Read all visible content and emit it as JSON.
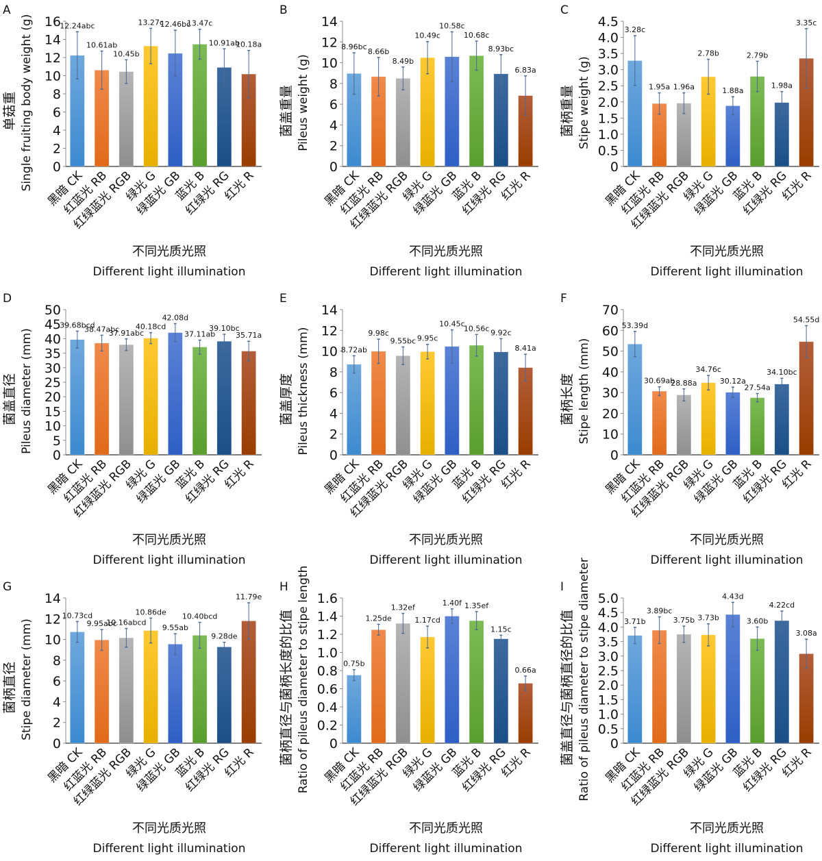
{
  "figure": {
    "xlabel_cn": "不同光质光照",
    "xlabel_en": "Different light illumination",
    "categories": [
      "黑暗 CK",
      "红蓝光 RB",
      "红绿蓝光 RGB",
      "绿光 G",
      "绿蓝光 GB",
      "蓝光 B",
      "红绿光 RG",
      "红光 R"
    ],
    "bar_colors": [
      {
        "top": "#6fa8dc",
        "bottom": "#3d8ad0"
      },
      {
        "top": "#f08a4b",
        "bottom": "#e06a1a"
      },
      {
        "top": "#b5b5b5",
        "bottom": "#8f8f8f"
      },
      {
        "top": "#ffc933",
        "bottom": "#e6b000"
      },
      {
        "top": "#5b82d6",
        "bottom": "#2e5fc4"
      },
      {
        "top": "#7dbb55",
        "bottom": "#5a9e2f"
      },
      {
        "top": "#3d6a9e",
        "bottom": "#1a4f86"
      },
      {
        "top": "#b35e3a",
        "bottom": "#993d00"
      }
    ],
    "errorbar_color": "#4a6a94"
  },
  "chart_data": [
    {
      "panel": "A",
      "type": "bar",
      "ylabel_cn": "单菇重",
      "ylabel_en": "Single fruiting body weight (g)",
      "xlabel": "不同光质光照 Different light illumination",
      "categories": [
        "黑暗 CK",
        "红蓝光 RB",
        "红绿蓝光 RGB",
        "绿光 G",
        "绿蓝光 GB",
        "蓝光 B",
        "红绿光 RG",
        "红光 R"
      ],
      "values": [
        12.24,
        10.61,
        10.45,
        13.27,
        12.46,
        13.47,
        10.91,
        10.18
      ],
      "errors": [
        2.6,
        2.1,
        1.3,
        1.95,
        2.55,
        1.65,
        2.05,
        2.6
      ],
      "labels": [
        "12.24abc",
        "10.61ab",
        "10.45b",
        "13.27c",
        "12.46bc",
        "13.47c",
        "10.91ab",
        "10.18a"
      ],
      "ylim": [
        0,
        16
      ],
      "yticks": [
        "0",
        "2",
        "4",
        "6",
        "8",
        "10",
        "12",
        "14",
        "16"
      ],
      "ytick_values": [
        0,
        2,
        4,
        6,
        8,
        10,
        12,
        14,
        16
      ],
      "grid": false
    },
    {
      "panel": "B",
      "type": "bar",
      "ylabel_cn": "菌盖重量",
      "ylabel_en": "Pileus weight (g)",
      "xlabel": "不同光质光照 Different light illumination",
      "categories": [
        "黑暗 CK",
        "红蓝光 RB",
        "红绿蓝光 RGB",
        "绿光 G",
        "绿蓝光 GB",
        "蓝光 B",
        "红绿光 RG",
        "红光 R"
      ],
      "values": [
        8.96,
        8.66,
        8.49,
        10.49,
        10.58,
        10.68,
        8.93,
        6.83
      ],
      "errors": [
        2.0,
        1.85,
        1.1,
        1.55,
        2.4,
        1.4,
        1.85,
        1.9
      ],
      "labels": [
        "8.96bc",
        "8.66b",
        "8.49b",
        "10.49c",
        "10.58c",
        "10.68c",
        "8.93bc",
        "6.83a"
      ],
      "ylim": [
        0,
        14
      ],
      "yticks": [
        "0",
        "2",
        "4",
        "6",
        "8",
        "10",
        "12",
        "14"
      ],
      "ytick_values": [
        0,
        2,
        4,
        6,
        8,
        10,
        12,
        14
      ],
      "grid": false
    },
    {
      "panel": "C",
      "type": "bar",
      "ylabel_cn": "菌柄重量",
      "ylabel_en": "Stipe weight (g)",
      "xlabel": "不同光质光照 Different light illumination",
      "categories": [
        "黑暗 CK",
        "红蓝光 RB",
        "红绿蓝光 RGB",
        "绿光 G",
        "绿蓝光 GB",
        "蓝光 B",
        "红绿光 RG",
        "红光 R"
      ],
      "values": [
        3.28,
        1.95,
        1.96,
        2.78,
        1.88,
        2.79,
        1.98,
        3.35
      ],
      "errors": [
        0.77,
        0.33,
        0.32,
        0.54,
        0.28,
        0.47,
        0.34,
        0.92
      ],
      "labels": [
        "3.28c",
        "1.95a",
        "1.96a",
        "2.78b",
        "1.88a",
        "2.79b",
        "1.98a",
        "3.35c"
      ],
      "ylim": [
        0,
        4.5
      ],
      "yticks": [
        "0",
        "0.5",
        "1.0",
        "1.5",
        "2.0",
        "2.5",
        "3.0",
        "3.5",
        "4.0",
        "4.5"
      ],
      "ytick_values": [
        0,
        0.5,
        1.0,
        1.5,
        2.0,
        2.5,
        3.0,
        3.5,
        4.0,
        4.5
      ],
      "grid": false
    },
    {
      "panel": "D",
      "type": "bar",
      "ylabel_cn": "菌盖直径",
      "ylabel_en": "Pileus diameter (mm)",
      "xlabel": "不同光质光照 Different light illumination",
      "categories": [
        "黑暗 CK",
        "红蓝光 RB",
        "红绿蓝光 RGB",
        "绿光 G",
        "绿蓝光 GB",
        "蓝光 B",
        "红绿光 RG",
        "红光 R"
      ],
      "values": [
        39.68,
        38.47,
        37.91,
        40.18,
        42.08,
        37.11,
        39.1,
        35.71
      ],
      "errors": [
        2.9,
        2.7,
        2.0,
        1.9,
        3.1,
        2.4,
        2.4,
        3.4
      ],
      "labels": [
        "39.68bcd",
        "38.47abc",
        "37.91abc",
        "40.18cd",
        "42.08d",
        "37.11ab",
        "39.10bc",
        "35.71a"
      ],
      "ylim": [
        0,
        50
      ],
      "yticks": [
        "0",
        "5",
        "10",
        "15",
        "20",
        "25",
        "30",
        "35",
        "40",
        "45",
        "50"
      ],
      "ytick_values": [
        0,
        5,
        10,
        15,
        20,
        25,
        30,
        35,
        40,
        45,
        50
      ],
      "grid": false
    },
    {
      "panel": "E",
      "type": "bar",
      "ylabel_cn": "菌盖厚度",
      "ylabel_en": "Pileus thickness (mm)",
      "xlabel": "不同光质光照 Different light illumination",
      "categories": [
        "黑暗 CK",
        "红蓝光 RB",
        "红绿蓝光 RGB",
        "绿光 G",
        "绿蓝光 GB",
        "蓝光 B",
        "红绿光 RG",
        "红光 R"
      ],
      "values": [
        8.72,
        9.98,
        9.55,
        9.95,
        10.45,
        10.56,
        9.92,
        8.41
      ],
      "errors": [
        0.83,
        1.17,
        0.85,
        0.7,
        1.6,
        1.04,
        1.28,
        1.29
      ],
      "labels": [
        "8.72ab",
        "9.98c",
        "9.55bc",
        "9.95c",
        "10.45c",
        "10.56c",
        "9.92c",
        "8.41a"
      ],
      "ylim": [
        0,
        14
      ],
      "yticks": [
        "0",
        "2",
        "4",
        "6",
        "8",
        "10",
        "12",
        "14"
      ],
      "ytick_values": [
        0,
        2,
        4,
        6,
        8,
        10,
        12,
        14
      ],
      "grid": false
    },
    {
      "panel": "F",
      "type": "bar",
      "ylabel_cn": "菌柄长度",
      "ylabel_en": "Stipe length (mm)",
      "xlabel": "不同光质光照 Different light illumination",
      "categories": [
        "黑暗 CK",
        "红蓝光 RB",
        "红绿蓝光 RGB",
        "绿光 G",
        "绿蓝光 GB",
        "蓝光 B",
        "红绿光 RG",
        "红光 R"
      ],
      "values": [
        53.39,
        30.69,
        28.88,
        34.76,
        30.12,
        27.54,
        34.1,
        54.55
      ],
      "errors": [
        6.1,
        2.1,
        2.9,
        3.5,
        2.5,
        2.0,
        2.8,
        7.7
      ],
      "labels": [
        "53.39d",
        "30.69ab",
        "28.88a",
        "34.76c",
        "30.12a",
        "27.54a",
        "34.10bc",
        "54.55d"
      ],
      "ylim": [
        0,
        70
      ],
      "yticks": [
        "0",
        "10",
        "20",
        "30",
        "40",
        "50",
        "60",
        "70"
      ],
      "ytick_values": [
        0,
        10,
        20,
        30,
        40,
        50,
        60,
        70
      ],
      "grid": false
    },
    {
      "panel": "G",
      "type": "bar",
      "ylabel_cn": "菌柄直径",
      "ylabel_en": "Stipe diameter (mm)",
      "xlabel": "不同光质光照 Different light illumination",
      "categories": [
        "黑暗 CK",
        "红蓝光 RB",
        "红绿蓝光 RGB",
        "绿光 G",
        "绿蓝光 GB",
        "蓝光 B",
        "红绿光 RG",
        "红光 R"
      ],
      "values": [
        10.73,
        9.95,
        10.16,
        10.86,
        9.55,
        10.4,
        9.28,
        11.79
      ],
      "errors": [
        1.0,
        1.0,
        0.9,
        1.2,
        1.0,
        1.25,
        0.45,
        1.75
      ],
      "labels": [
        "10.73cd",
        "9.95abc",
        "10.16abcd",
        "10.86de",
        "9.55ab",
        "10.40bcd",
        "9.28de",
        "11.79e"
      ],
      "ylim": [
        0,
        14
      ],
      "yticks": [
        "0",
        "2",
        "4",
        "6",
        "8",
        "10",
        "12",
        "14"
      ],
      "ytick_values": [
        0,
        2,
        4,
        6,
        8,
        10,
        12,
        14
      ],
      "grid": false
    },
    {
      "panel": "H",
      "type": "bar",
      "ylabel_cn": "菌柄直径与菌柄长度的比值",
      "ylabel_en": "Ratio of pileus diameter to stipe length",
      "xlabel": "不同光质光照 Different light illumination",
      "categories": [
        "黑暗 CK",
        "红蓝光 RB",
        "红绿蓝光 RGB",
        "绿光 G",
        "绿蓝光 GB",
        "蓝光 B",
        "红绿光 RG",
        "红光 R"
      ],
      "values": [
        0.75,
        1.25,
        1.32,
        1.17,
        1.4,
        1.35,
        1.15,
        0.66
      ],
      "errors": [
        0.06,
        0.06,
        0.11,
        0.12,
        0.08,
        0.1,
        0.04,
        0.08
      ],
      "labels": [
        "0.75b",
        "1.25de",
        "1.32ef",
        "1.17cd",
        "1.40f",
        "1.35ef",
        "1.15c",
        "0.66a"
      ],
      "ylim": [
        0,
        1.6
      ],
      "yticks": [
        "0",
        "0.2",
        "0.4",
        "0.6",
        "0.8",
        "1.0",
        "1.2",
        "1.4",
        "1.6"
      ],
      "ytick_values": [
        0,
        0.2,
        0.4,
        0.6,
        0.8,
        1.0,
        1.2,
        1.4,
        1.6
      ],
      "grid": false
    },
    {
      "panel": "I",
      "type": "bar",
      "ylabel_cn": "菌盖直径与菌柄直径的比值",
      "ylabel_en": "Ratio of pileus diameter to stipe diameter",
      "xlabel": "不同光质光照 Different light illumination",
      "categories": [
        "黑暗 CK",
        "红蓝光 RB",
        "红绿蓝光 RGB",
        "绿光 G",
        "绿蓝光 GB",
        "蓝光 B",
        "红绿光 RG",
        "红光 R"
      ],
      "values": [
        3.71,
        3.89,
        3.75,
        3.73,
        4.43,
        3.6,
        4.22,
        3.08
      ],
      "errors": [
        0.28,
        0.46,
        0.28,
        0.38,
        0.42,
        0.4,
        0.33,
        0.5
      ],
      "labels": [
        "3.71b",
        "3.89bc",
        "3.75b",
        "3.73b",
        "4.43d",
        "3.60b",
        "4.22cd",
        "3.08a"
      ],
      "ylim": [
        0,
        5.0
      ],
      "yticks": [
        "0",
        "0.5",
        "1.0",
        "1.5",
        "2.0",
        "2.5",
        "3.0",
        "3.5",
        "4.0",
        "4.5",
        "5.0"
      ],
      "ytick_values": [
        0,
        0.5,
        1.0,
        1.5,
        2.0,
        2.5,
        3.0,
        3.5,
        4.0,
        4.5,
        5.0
      ],
      "grid": false
    }
  ]
}
